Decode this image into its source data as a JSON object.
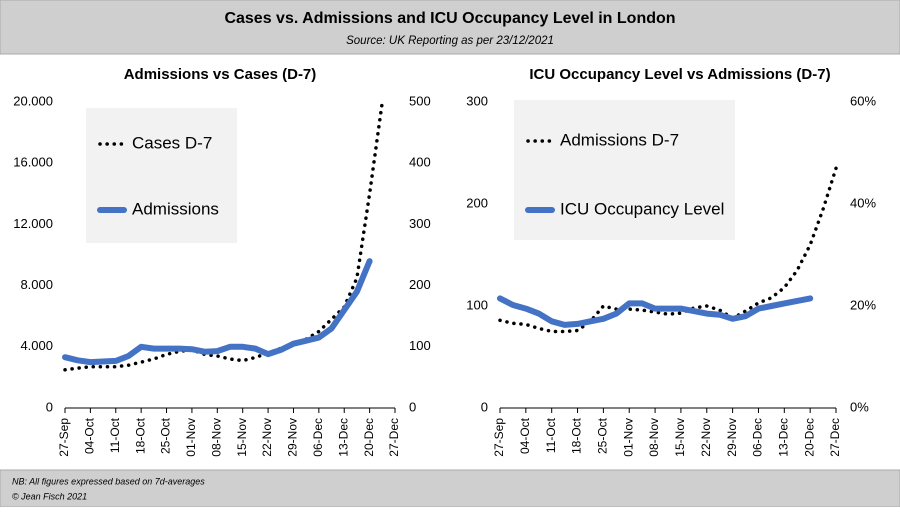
{
  "title": "Cases vs. Admissions and ICU Occupancy Level in London",
  "subtitle": "Source: UK Reporting as per 23/12/2021",
  "notes": [
    "NB: All figures expressed based on 7d-averages",
    "© Jean Fisch 2021"
  ],
  "chart_data": [
    {
      "type": "line",
      "title": "Admissions vs Cases (D-7)",
      "categories": [
        "27-Sep",
        null,
        "04-Oct",
        null,
        "11-Oct",
        null,
        "18-Oct",
        null,
        "25-Oct",
        null,
        "01-Nov",
        null,
        "08-Nov",
        null,
        "15-Nov",
        null,
        "22-Nov",
        null,
        "29-Nov",
        null,
        "06-Dec",
        null,
        "13-Dec",
        null,
        "20-Dec",
        null,
        "27-Dec"
      ],
      "ylim": [
        0,
        20000
      ],
      "yticks": [
        0,
        {
          "value": 4000,
          "label": "4.000"
        },
        {
          "value": 8000,
          "label": "8.000"
        },
        {
          "value": 12000,
          "label": "12.000"
        },
        {
          "value": 16000,
          "label": "16.000"
        },
        {
          "value": 20000,
          "label": "20.000"
        }
      ],
      "y2lim": [
        0,
        500
      ],
      "y2ticks": [
        0,
        100,
        200,
        300,
        400,
        500
      ],
      "series": [
        {
          "name": "Cases D-7",
          "color": "#000000",
          "style": "dotted",
          "values": [
            2500,
            2600,
            2700,
            2700,
            2700,
            2800,
            3000,
            3200,
            3500,
            3700,
            3800,
            3500,
            3400,
            3200,
            3100,
            3300,
            3600,
            3900,
            4200,
            4500,
            5000,
            5800,
            6600,
            8500,
            14000,
            20000,
            null
          ]
        },
        {
          "name": "Admissions",
          "color": "#4472c4",
          "style": "solid",
          "axis": "y2",
          "values": [
            83,
            78,
            75,
            76,
            77,
            85,
            100,
            97,
            97,
            97,
            96,
            92,
            93,
            100,
            100,
            97,
            88,
            95,
            105,
            110,
            115,
            130,
            160,
            190,
            240,
            null,
            null
          ]
        }
      ]
    },
    {
      "type": "line",
      "title": "ICU Occupancy Level vs Admissions (D-7)",
      "categories": [
        "27-Sep",
        null,
        "04-Oct",
        null,
        "11-Oct",
        null,
        "18-Oct",
        null,
        "25-Oct",
        null,
        "01-Nov",
        null,
        "08-Nov",
        null,
        "15-Nov",
        null,
        "22-Nov",
        null,
        "29-Nov",
        null,
        "06-Dec",
        null,
        "13-Dec",
        null,
        "20-Dec",
        null,
        "27-Dec"
      ],
      "ylim": [
        0,
        300
      ],
      "yticks": [
        0,
        100,
        200,
        300
      ],
      "y2lim": [
        0,
        60
      ],
      "y2ticks": [
        {
          "value": 0,
          "label": "0%"
        },
        {
          "value": 20,
          "label": "20%"
        },
        {
          "value": 40,
          "label": "40%"
        },
        {
          "value": 60,
          "label": "60%"
        }
      ],
      "series": [
        {
          "name": "Admissions D-7",
          "color": "#000000",
          "style": "dotted",
          "values": [
            86,
            83,
            82,
            78,
            75,
            75,
            76,
            85,
            100,
            97,
            97,
            96,
            94,
            92,
            93,
            98,
            100,
            96,
            88,
            95,
            103,
            108,
            118,
            135,
            160,
            195,
            235
          ]
        },
        {
          "name": "ICU Occupancy Level",
          "color": "#4472c4",
          "style": "solid",
          "axis": "y2",
          "values": [
            21.5,
            20.2,
            19.5,
            18.5,
            17,
            16.3,
            16.5,
            17,
            17.5,
            18.5,
            20.5,
            20.5,
            19.5,
            19.5,
            19.5,
            19,
            18.5,
            18.3,
            17.5,
            18,
            19.5,
            20,
            20.5,
            21,
            21.5,
            null,
            null
          ]
        }
      ]
    }
  ]
}
